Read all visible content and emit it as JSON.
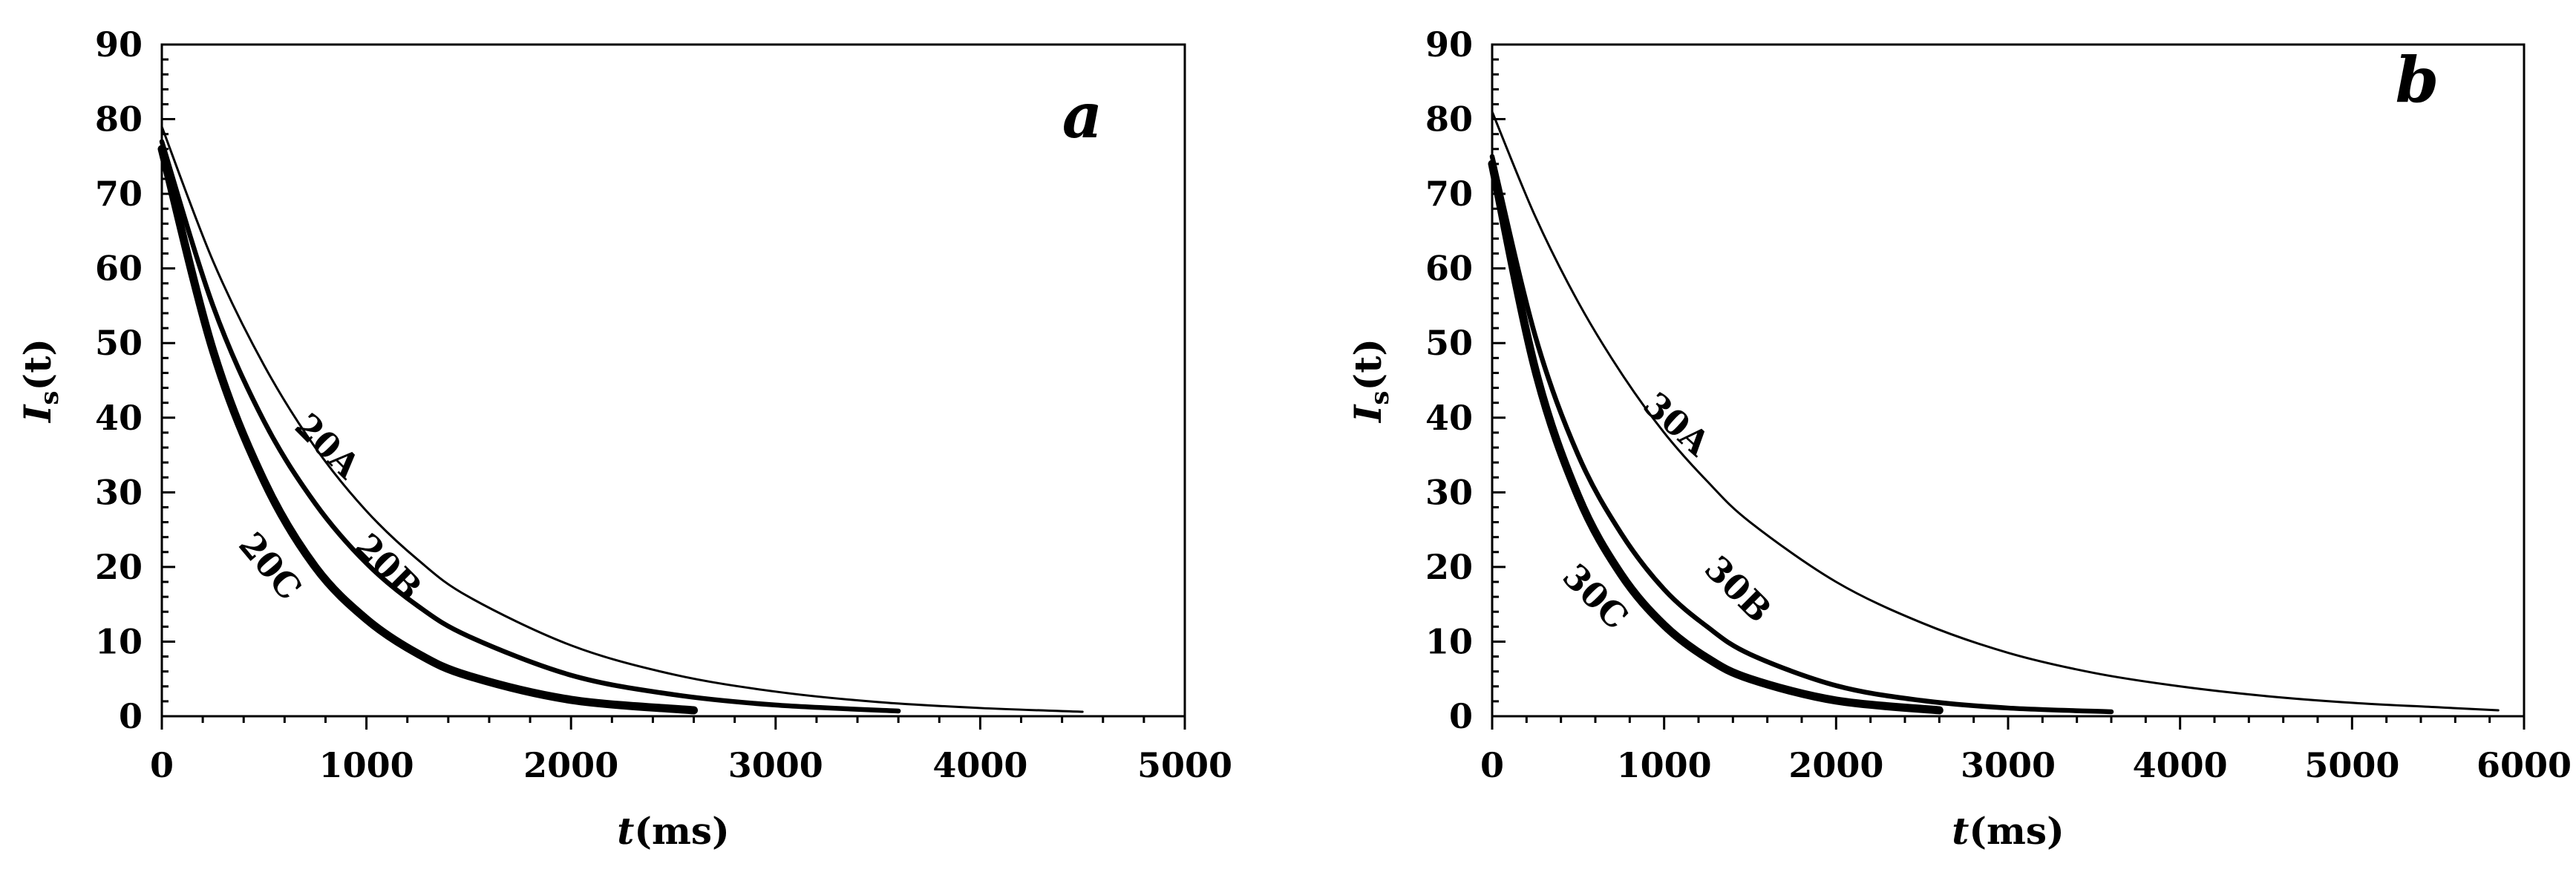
{
  "chart_data": [
    {
      "type": "line",
      "panel_label": "a",
      "xlabel_italic": "t",
      "xlabel_rest": "(ms)",
      "ylabel_main": "I",
      "ylabel_sub": "s",
      "ylabel_rest": "(t)",
      "xlim": [
        0,
        5000
      ],
      "ylim": [
        0,
        90
      ],
      "xticks": [
        0,
        1000,
        2000,
        3000,
        4000,
        5000
      ],
      "yticks": [
        0,
        10,
        20,
        30,
        40,
        50,
        60,
        70,
        80,
        90
      ],
      "grid": false,
      "series": [
        {
          "name": "20A",
          "weight": "thin",
          "x": [
            0,
            250,
            500,
            750,
            1000,
            1250,
            1500,
            2000,
            2500,
            3000,
            3500,
            4000,
            4500
          ],
          "y": [
            79,
            61,
            47,
            36,
            27.5,
            21,
            16,
            9.5,
            5.6,
            3.3,
            1.9,
            1.1,
            0.6
          ]
        },
        {
          "name": "20B",
          "weight": "medium",
          "x": [
            0,
            250,
            500,
            750,
            1000,
            1250,
            1500,
            2000,
            2500,
            3000,
            3600
          ],
          "y": [
            77,
            55,
            39.5,
            28.5,
            20.5,
            14.8,
            10.7,
            5.5,
            2.9,
            1.5,
            0.7
          ]
        },
        {
          "name": "20C",
          "weight": "thick",
          "x": [
            0,
            250,
            500,
            750,
            1000,
            1250,
            1500,
            2000,
            2600
          ],
          "y": [
            76,
            49,
            31.5,
            20,
            13,
            8.4,
            5.4,
            2.2,
            0.8
          ]
        }
      ]
    },
    {
      "type": "line",
      "panel_label": "b",
      "xlabel_italic": "t",
      "xlabel_rest": "(ms)",
      "ylabel_main": "I",
      "ylabel_sub": "s",
      "ylabel_rest": "(t)",
      "xlim": [
        0,
        6000
      ],
      "ylim": [
        0,
        90
      ],
      "xticks": [
        0,
        1000,
        2000,
        3000,
        4000,
        5000,
        6000
      ],
      "yticks": [
        0,
        10,
        20,
        30,
        40,
        50,
        60,
        70,
        80,
        90
      ],
      "grid": false,
      "series": [
        {
          "name": "30A",
          "weight": "thin",
          "x": [
            0,
            250,
            500,
            750,
            1000,
            1250,
            1500,
            2000,
            2500,
            3000,
            3500,
            4000,
            4500,
            5000,
            5500,
            5850
          ],
          "y": [
            81,
            67,
            55.5,
            46,
            38,
            31.5,
            26,
            18,
            12.5,
            8.5,
            5.8,
            4.0,
            2.7,
            1.8,
            1.2,
            0.8
          ]
        },
        {
          "name": "30B",
          "weight": "medium",
          "x": [
            0,
            250,
            500,
            750,
            1000,
            1250,
            1500,
            2000,
            2500,
            3000,
            3600
          ],
          "y": [
            75,
            51,
            35,
            24.5,
            17,
            12,
            8.3,
            4.1,
            2.1,
            1.1,
            0.6
          ]
        },
        {
          "name": "30C",
          "weight": "thick",
          "x": [
            0,
            250,
            500,
            750,
            1000,
            1250,
            1500,
            2000,
            2600
          ],
          "y": [
            74,
            46.5,
            29.5,
            19,
            12.2,
            7.8,
            5.0,
            2.1,
            0.8
          ]
        }
      ]
    }
  ]
}
